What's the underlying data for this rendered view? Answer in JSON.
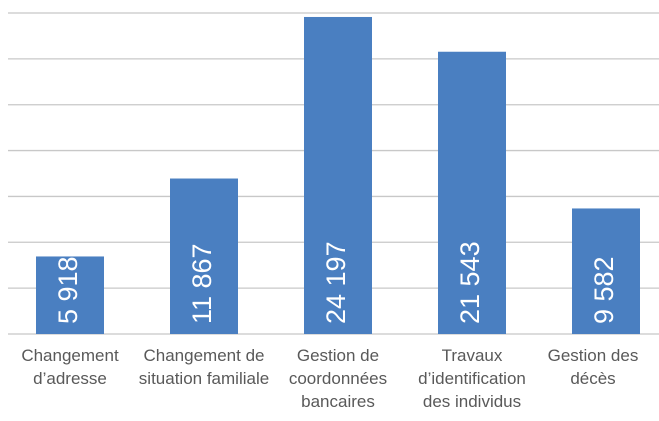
{
  "chart_data": {
    "type": "bar",
    "categories": [
      "Changement d’adresse",
      "Changement de situation familiale",
      "Gestion de coordonnées bancaires",
      "Travaux d’identification des individus",
      "Gestion des décès"
    ],
    "values": [
      5918,
      11867,
      24197,
      21543,
      9582
    ],
    "value_labels": [
      "5 918",
      "11 867",
      "24 197",
      "21 543",
      "9 582"
    ],
    "color": "#4a7fc1",
    "ylim": [
      0,
      24500
    ],
    "yticks": [
      0,
      3500,
      7000,
      10500,
      14000,
      17500,
      21000,
      24500
    ],
    "grid": true
  }
}
